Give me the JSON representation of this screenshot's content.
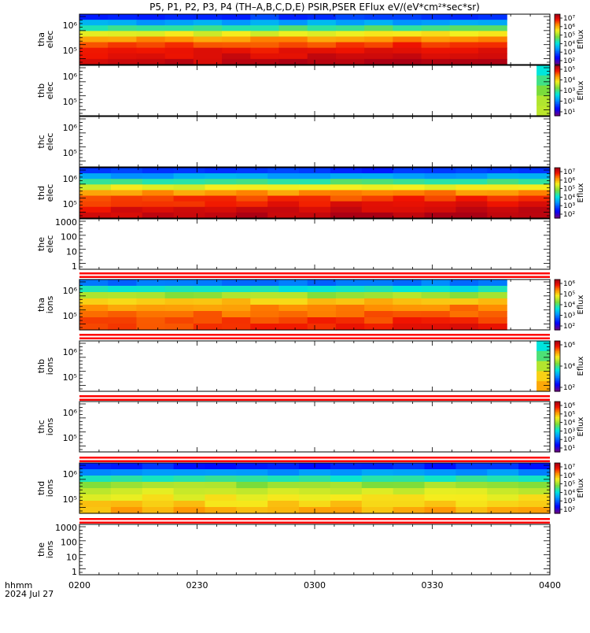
{
  "title": "P5, P1, P2, P3, P4 (TH–A,B,C,D,E) PSIR,PSER EFlux eV/(eV*cm²*sec*sr)",
  "time_axis": {
    "label": "hhmm",
    "date": "2024 Jul 27",
    "ticks": [
      "0200",
      "0230",
      "0300",
      "0330",
      "0400"
    ]
  },
  "colorbar_label": "Eflux",
  "chart_data": {
    "type": "heatmap",
    "x_range": [
      "0200",
      "0400"
    ],
    "panels": [
      {
        "id": "tha-elec",
        "ylabel": [
          "tha",
          "elec"
        ],
        "yscale": "log",
        "yticks": [
          "10⁶",
          "10⁵"
        ],
        "data_until_hhmm": "0349",
        "fill": "red-dominant",
        "colorbar_ticks": [
          "10⁷",
          "10⁶",
          "10⁵",
          "10⁴",
          "10³",
          "10²"
        ]
      },
      {
        "id": "thb-elec",
        "ylabel": [
          "thb",
          "elec"
        ],
        "yscale": "log",
        "yticks": [
          "10⁶",
          "10⁵"
        ],
        "data_from_hhmm": "0355",
        "fill": "green-yellow",
        "colorbar_ticks": [
          "10⁵",
          "10⁴",
          "10³",
          "10²",
          "10¹"
        ]
      },
      {
        "id": "thc-elec",
        "ylabel": [
          "thc",
          "elec"
        ],
        "yscale": "log",
        "yticks": [
          "10⁶",
          "10⁵"
        ],
        "fill": "none"
      },
      {
        "id": "thd-elec",
        "ylabel": [
          "thd",
          "elec"
        ],
        "yscale": "log",
        "yticks": [
          "10⁶",
          "10⁵"
        ],
        "fill": "red-dominant",
        "colorbar_ticks": [
          "10⁷",
          "10⁶",
          "10⁵",
          "10⁴",
          "10³",
          "10²"
        ]
      },
      {
        "id": "the-elec",
        "ylabel": [
          "the",
          "elec"
        ],
        "yscale": "log",
        "yticks": [
          "1000",
          "100",
          "10",
          "1"
        ],
        "fill": "none"
      },
      {
        "id": "tha-ions",
        "ylabel": [
          "tha",
          "ions"
        ],
        "yscale": "log",
        "yticks": [
          "10⁶",
          "10⁵"
        ],
        "data_until_hhmm": "0349",
        "fill": "orange-dominant",
        "colorbar_ticks": [
          "10⁶",
          "10⁵",
          "10⁴",
          "10³",
          "10²"
        ]
      },
      {
        "id": "thb-ions",
        "ylabel": [
          "thb",
          "ions"
        ],
        "yscale": "log",
        "yticks": [
          "10⁶",
          "10⁵"
        ],
        "data_from_hhmm": "0355",
        "fill": "green-orange",
        "colorbar_ticks": [
          "10⁶",
          "10⁴",
          "10²"
        ]
      },
      {
        "id": "thc-ions",
        "ylabel": [
          "thc",
          "ions"
        ],
        "yscale": "log",
        "yticks": [
          "10⁶",
          "10⁵"
        ],
        "fill": "none",
        "colorbar_ticks": [
          "10⁶",
          "10⁵",
          "10⁴",
          "10³",
          "10²",
          "10¹"
        ]
      },
      {
        "id": "thd-ions",
        "ylabel": [
          "thd",
          "ions"
        ],
        "yscale": "log",
        "yticks": [
          "10⁶",
          "10⁵"
        ],
        "fill": "yellow-dominant",
        "colorbar_ticks": [
          "10⁷",
          "10⁶",
          "10⁵",
          "10⁴",
          "10³",
          "10²"
        ]
      },
      {
        "id": "the-ions",
        "ylabel": [
          "the",
          "ions"
        ],
        "yscale": "log",
        "yticks": [
          "1000",
          "100",
          "10",
          "1"
        ],
        "fill": "none"
      }
    ]
  }
}
